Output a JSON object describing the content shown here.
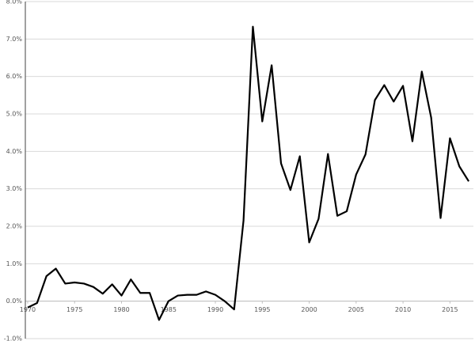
{
  "chart_data": {
    "type": "line",
    "x": [
      1970,
      1971,
      1972,
      1973,
      1974,
      1975,
      1976,
      1977,
      1978,
      1979,
      1980,
      1981,
      1982,
      1983,
      1984,
      1985,
      1986,
      1987,
      1988,
      1989,
      1990,
      1991,
      1992,
      1993,
      1994,
      1995,
      1996,
      1997,
      1998,
      1999,
      2000,
      2001,
      2002,
      2003,
      2004,
      2005,
      2006,
      2007,
      2008,
      2009,
      2010,
      2011,
      2012,
      2013,
      2014,
      2015,
      2016,
      2017
    ],
    "values": [
      -0.17,
      -0.05,
      0.67,
      0.87,
      0.47,
      0.5,
      0.47,
      0.38,
      0.2,
      0.45,
      0.15,
      0.58,
      0.22,
      0.22,
      -0.5,
      0.0,
      0.15,
      0.17,
      0.17,
      0.26,
      0.17,
      0.0,
      -0.22,
      2.15,
      7.33,
      4.8,
      6.3,
      3.68,
      2.97,
      3.87,
      1.57,
      2.2,
      3.93,
      2.28,
      2.4,
      3.38,
      3.92,
      5.37,
      5.77,
      5.33,
      5.75,
      4.27,
      6.13,
      4.9,
      2.22,
      4.35,
      3.6,
      3.2
    ],
    "color": "#000000",
    "xlim": [
      1969.75,
      2017.5
    ],
    "xticks": [
      1970,
      1975,
      1980,
      1985,
      1990,
      1995,
      2000,
      2005,
      2010,
      2015
    ],
    "ylim": [
      -1,
      8
    ],
    "yticks": [
      {
        "value": -1,
        "label": "-1.0%"
      },
      {
        "value": 0,
        "label": "0.0%"
      },
      {
        "value": 1,
        "label": "1.0%"
      },
      {
        "value": 2,
        "label": "2.0%"
      },
      {
        "value": 3,
        "label": "3.0%"
      },
      {
        "value": 4,
        "label": "4.0%"
      },
      {
        "value": 5,
        "label": "5.0%"
      },
      {
        "value": 6,
        "label": "6.0%"
      },
      {
        "value": 7,
        "label": "7.0%"
      },
      {
        "value": 8,
        "label": "8.0%"
      }
    ],
    "grid": true
  }
}
